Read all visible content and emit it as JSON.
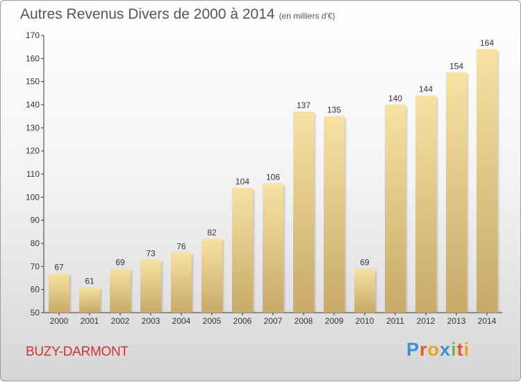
{
  "title": "Autres Revenus Divers de 2000 à 2014",
  "subtitle": "(en milliers d'€)",
  "place": "BUZY-DARMONT",
  "logo": {
    "text": "Proxiti",
    "letters": [
      "P",
      "r",
      "o",
      "x",
      "i",
      "t",
      "i"
    ],
    "colors": [
      "#3b8fd6",
      "#e8572a",
      "#f0a01e",
      "#3b8fd6",
      "#7cb342",
      "#e8572a",
      "#f0a01e"
    ]
  },
  "colors": {
    "bar_light": "#f7e2a3",
    "bar_dark": "#c7a968",
    "title": "#555555",
    "place": "#cc3333"
  },
  "chart_data": {
    "type": "bar",
    "title": "Autres Revenus Divers de 2000 à 2014",
    "subtitle": "(en milliers d'€)",
    "categories": [
      "2000",
      "2001",
      "2002",
      "2003",
      "2004",
      "2005",
      "2006",
      "2007",
      "2008",
      "2009",
      "2010",
      "2011",
      "2012",
      "2013",
      "2014"
    ],
    "values": [
      67,
      61,
      69,
      73,
      76,
      82,
      104,
      106,
      137,
      135,
      69,
      140,
      144,
      154,
      164
    ],
    "ylim": [
      50,
      170
    ],
    "yticks": [
      50,
      60,
      70,
      80,
      90,
      100,
      110,
      120,
      130,
      140,
      150,
      160,
      170
    ],
    "grid": false,
    "data_labels": true
  }
}
